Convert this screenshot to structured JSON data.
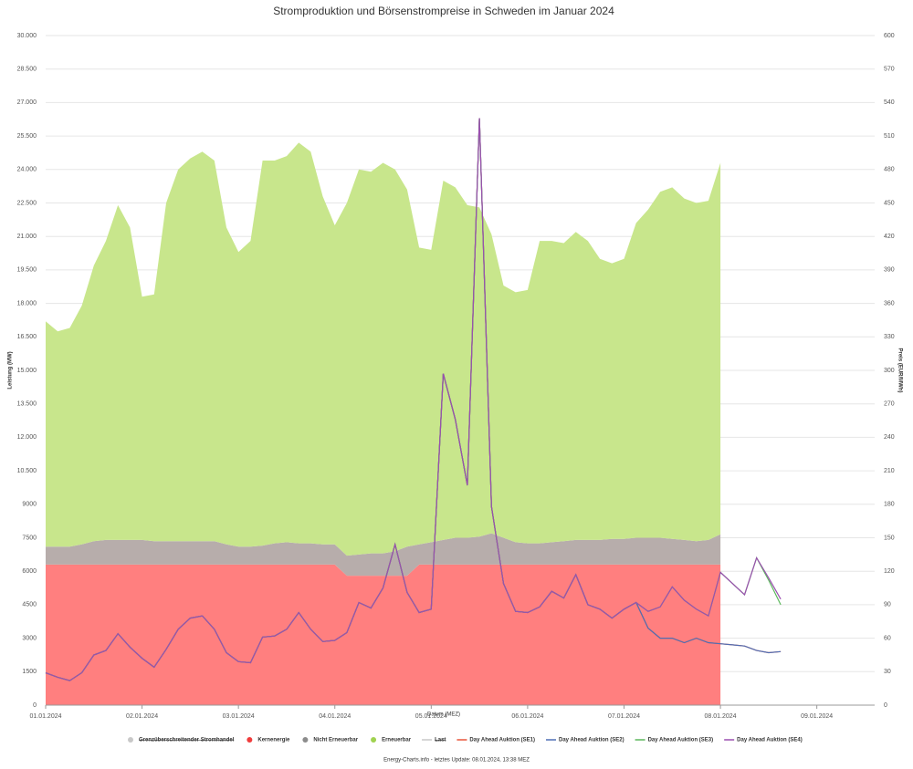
{
  "chart_data": {
    "type": "stacked_area_line",
    "title": "Stromproduktion und Börsenstrompreise in Schweden im Januar 2024",
    "xlabel": "Datum (MEZ)",
    "ylabel": "Leistung (MW)",
    "y2label": "Preis (EUR/MWh)",
    "footer": "Energy-Charts.info - letztes Update: 08.01.2024, 13:38 MEZ",
    "x": [
      0,
      0.125,
      0.25,
      0.375,
      0.5,
      0.625,
      0.75,
      0.875,
      1,
      1.125,
      1.25,
      1.375,
      1.5,
      1.625,
      1.75,
      1.875,
      2,
      2.125,
      2.25,
      2.375,
      2.5,
      2.625,
      2.75,
      2.875,
      3,
      3.125,
      3.25,
      3.375,
      3.5,
      3.625,
      3.75,
      3.875,
      4,
      4.125,
      4.25,
      4.375,
      4.5,
      4.625,
      4.75,
      4.875,
      5,
      5.125,
      5.25,
      5.375,
      5.5,
      5.625,
      5.75,
      5.875,
      6,
      6.125,
      6.25,
      6.375,
      6.5,
      6.625,
      6.75,
      6.875,
      7,
      7.125,
      7.25,
      7.375,
      7.5,
      7.625
    ],
    "xlim": [
      0,
      8.6
    ],
    "xticks": [
      {
        "value": 0,
        "label": "01.01.2024"
      },
      {
        "value": 1,
        "label": "02.01.2024"
      },
      {
        "value": 2,
        "label": "03.01.2024"
      },
      {
        "value": 3,
        "label": "04.01.2024"
      },
      {
        "value": 4,
        "label": "05.01.2024"
      },
      {
        "value": 5,
        "label": "06.01.2024"
      },
      {
        "value": 6,
        "label": "07.01.2024"
      },
      {
        "value": 7,
        "label": "08.01.2024"
      },
      {
        "value": 8,
        "label": "09.01.2024"
      }
    ],
    "ylim": [
      0,
      30000
    ],
    "yticks": [
      0,
      1500,
      3000,
      4500,
      6000,
      7500,
      9000,
      {
        "value": 10500,
        "label": "10.500"
      },
      {
        "value": 12000,
        "label": "12.000"
      },
      {
        "value": 13500,
        "label": "13.500"
      },
      {
        "value": 15000,
        "label": "15.000"
      },
      {
        "value": 16500,
        "label": "16.500"
      },
      {
        "value": 18000,
        "label": "18.000"
      },
      {
        "value": 19500,
        "label": "19.500"
      },
      {
        "value": 21000,
        "label": "21.000"
      },
      {
        "value": 22500,
        "label": "22.500"
      },
      {
        "value": 24000,
        "label": "24.000"
      },
      {
        "value": 25500,
        "label": "25.500"
      },
      {
        "value": 27000,
        "label": "27.000"
      },
      {
        "value": 28500,
        "label": "28.500"
      },
      {
        "value": 30000,
        "label": "30.000"
      }
    ],
    "y2lim": [
      0,
      600
    ],
    "y2ticks": [
      0,
      30,
      60,
      90,
      120,
      150,
      180,
      210,
      240,
      270,
      300,
      330,
      360,
      390,
      420,
      450,
      480,
      510,
      540,
      570,
      600
    ],
    "grid": true,
    "inactive_legend": [
      {
        "name": "Grenzüberschreitender Stromhandel",
        "color": "#c8c8c8"
      },
      {
        "name": "Last",
        "color": "#c8c8c8"
      }
    ],
    "series": [
      {
        "name": "Kernenergie",
        "color": "#ff7f7f",
        "legend_color": "#f03c3c",
        "kind": "area",
        "values": [
          6300,
          6300,
          6300,
          6300,
          6300,
          6300,
          6300,
          6300,
          6300,
          6300,
          6300,
          6300,
          6300,
          6300,
          6300,
          6300,
          6300,
          6300,
          6300,
          6300,
          6300,
          6300,
          6300,
          6300,
          6300,
          5800,
          5800,
          5800,
          5800,
          5800,
          5800,
          6300,
          6300,
          6300,
          6300,
          6300,
          6300,
          6300,
          6300,
          6300,
          6300,
          6300,
          6300,
          6300,
          6300,
          6300,
          6300,
          6300,
          6300,
          6300,
          6300,
          6300,
          6300,
          6300,
          6300,
          6300,
          6300,
          null,
          null,
          null,
          null,
          null
        ]
      },
      {
        "name": "Nicht Erneuerbar",
        "color": "#b7adab",
        "legend_color": "#8c8c8c",
        "kind": "area",
        "values": [
          800,
          800,
          800,
          900,
          1050,
          1100,
          1100,
          1100,
          1100,
          1050,
          1050,
          1050,
          1050,
          1050,
          1050,
          900,
          800,
          800,
          850,
          950,
          1000,
          950,
          950,
          900,
          900,
          900,
          950,
          1000,
          1000,
          1100,
          1300,
          900,
          1000,
          1100,
          1200,
          1200,
          1250,
          1400,
          1200,
          1000,
          950,
          950,
          1000,
          1050,
          1100,
          1100,
          1100,
          1150,
          1150,
          1200,
          1200,
          1200,
          1150,
          1100,
          1050,
          1100,
          1350,
          null,
          null,
          null,
          null,
          null
        ]
      },
      {
        "name": "Erneuerbar",
        "color": "#c8e68c",
        "legend_color": "#a0d250",
        "kind": "area",
        "values": [
          10100,
          9650,
          9800,
          10700,
          12350,
          13400,
          15000,
          14000,
          10900,
          11050,
          15150,
          16650,
          17150,
          17450,
          17050,
          14200,
          13200,
          13700,
          17250,
          17150,
          17300,
          17950,
          17550,
          15600,
          14300,
          15800,
          17250,
          17100,
          17500,
          17100,
          16000,
          13300,
          13100,
          16100,
          15700,
          14900,
          14750,
          13400,
          11300,
          11200,
          11350,
          13550,
          13500,
          13350,
          13800,
          13400,
          12600,
          12350,
          12550,
          14100,
          14700,
          15500,
          15750,
          15300,
          15150,
          15200,
          16650,
          null,
          null,
          null,
          null,
          null
        ]
      },
      {
        "name": "Day Ahead Auktion (SE1)",
        "color": "#e8553a",
        "kind": "line",
        "axis": "y2",
        "values": [
          29,
          25,
          22,
          29,
          45,
          49,
          64,
          52,
          42,
          34,
          50,
          68,
          78,
          80,
          68,
          47,
          39,
          38,
          61,
          62,
          68,
          83,
          68,
          57,
          58,
          65,
          92,
          87,
          105,
          144,
          101,
          83,
          86,
          297,
          256,
          197,
          526,
          178,
          109,
          84,
          83,
          88,
          102,
          96,
          117,
          90,
          86,
          78,
          86,
          92,
          69,
          60,
          60,
          56,
          60,
          56,
          55,
          54,
          53,
          49,
          47,
          48
        ]
      },
      {
        "name": "Day Ahead Auktion (SE2)",
        "color": "#4f6fb5",
        "kind": "line",
        "axis": "y2",
        "values": [
          29,
          25,
          22,
          29,
          45,
          49,
          64,
          52,
          42,
          34,
          50,
          68,
          78,
          80,
          68,
          47,
          39,
          38,
          61,
          62,
          68,
          83,
          68,
          57,
          58,
          65,
          92,
          87,
          105,
          144,
          101,
          83,
          86,
          297,
          256,
          197,
          526,
          178,
          109,
          84,
          83,
          88,
          102,
          96,
          117,
          90,
          86,
          78,
          86,
          92,
          69,
          60,
          60,
          56,
          60,
          56,
          55,
          54,
          53,
          49,
          47,
          48
        ]
      },
      {
        "name": "Day Ahead Auktion (SE3)",
        "color": "#5cb85c",
        "kind": "line",
        "axis": "y2",
        "values": [
          29,
          25,
          22,
          29,
          45,
          49,
          64,
          52,
          42,
          34,
          50,
          68,
          78,
          80,
          68,
          47,
          39,
          38,
          61,
          62,
          68,
          83,
          68,
          57,
          58,
          65,
          92,
          87,
          105,
          144,
          101,
          83,
          86,
          297,
          256,
          197,
          526,
          178,
          109,
          84,
          83,
          88,
          102,
          96,
          117,
          90,
          86,
          78,
          86,
          92,
          84,
          88,
          106,
          94,
          86,
          80,
          119,
          109,
          99,
          132,
          112,
          90
        ]
      },
      {
        "name": "Day Ahead Auktion (SE4)",
        "color": "#9b4fb0",
        "kind": "line",
        "axis": "y2",
        "values": [
          29,
          25,
          22,
          29,
          45,
          49,
          64,
          52,
          42,
          34,
          50,
          68,
          78,
          80,
          68,
          47,
          39,
          38,
          61,
          62,
          68,
          83,
          68,
          57,
          58,
          65,
          92,
          87,
          105,
          144,
          101,
          83,
          86,
          297,
          256,
          197,
          526,
          178,
          109,
          84,
          83,
          88,
          102,
          96,
          117,
          90,
          86,
          78,
          86,
          92,
          84,
          88,
          106,
          94,
          86,
          80,
          119,
          109,
          99,
          132,
          114,
          95
        ]
      }
    ]
  }
}
